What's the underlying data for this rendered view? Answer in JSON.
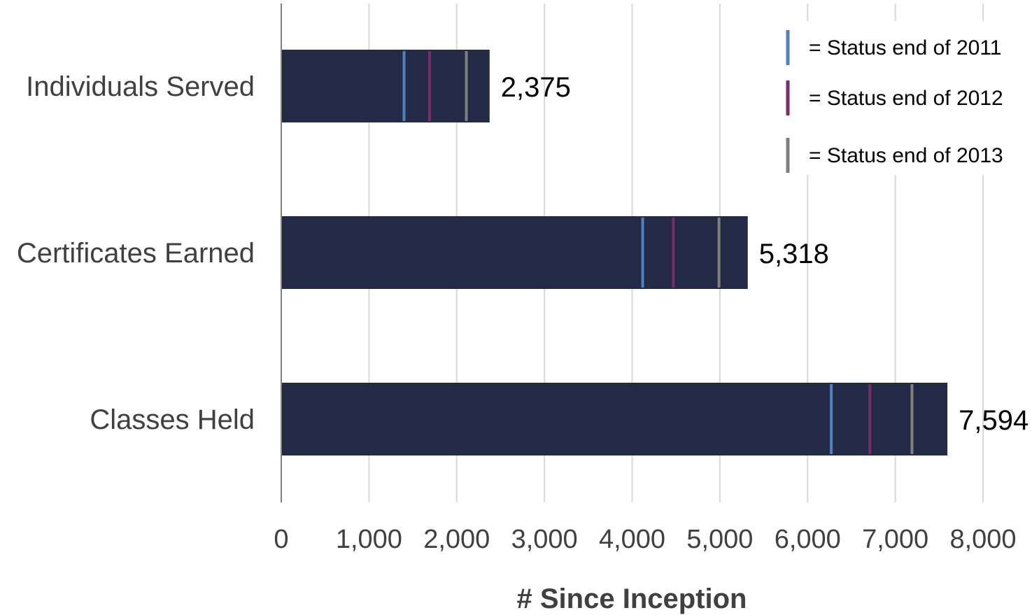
{
  "chart_data": {
    "type": "bar",
    "orientation": "horizontal",
    "categories": [
      "Individuals Served",
      "Certificates Earned",
      "Classes Held"
    ],
    "values": [
      2375,
      5318,
      7594
    ],
    "value_labels": [
      "2,375",
      "5,318",
      "7,594"
    ],
    "markers": [
      {
        "name": "= Status end of 2011",
        "color": "#4f81bd",
        "values": [
          1400,
          4120,
          6270
        ]
      },
      {
        "name": "= Status end of 2012",
        "color": "#7b2c6a",
        "values": [
          1690,
          4470,
          6710
        ]
      },
      {
        "name": "= Status end of 2013",
        "color": "#7f7f7f",
        "values": [
          2110,
          4990,
          7190
        ]
      }
    ],
    "xlabel": "# Since Inception",
    "xlim": [
      0,
      8000
    ],
    "ticks": [
      0,
      1000,
      2000,
      3000,
      4000,
      5000,
      6000,
      7000,
      8000
    ],
    "tick_labels": [
      "0",
      "1,000",
      "2,000",
      "3,000",
      "4,000",
      "5,000",
      "6,000",
      "7,000",
      "8,000"
    ],
    "bar_color": "#222a45",
    "grid": true,
    "legend_position": "top-right"
  }
}
